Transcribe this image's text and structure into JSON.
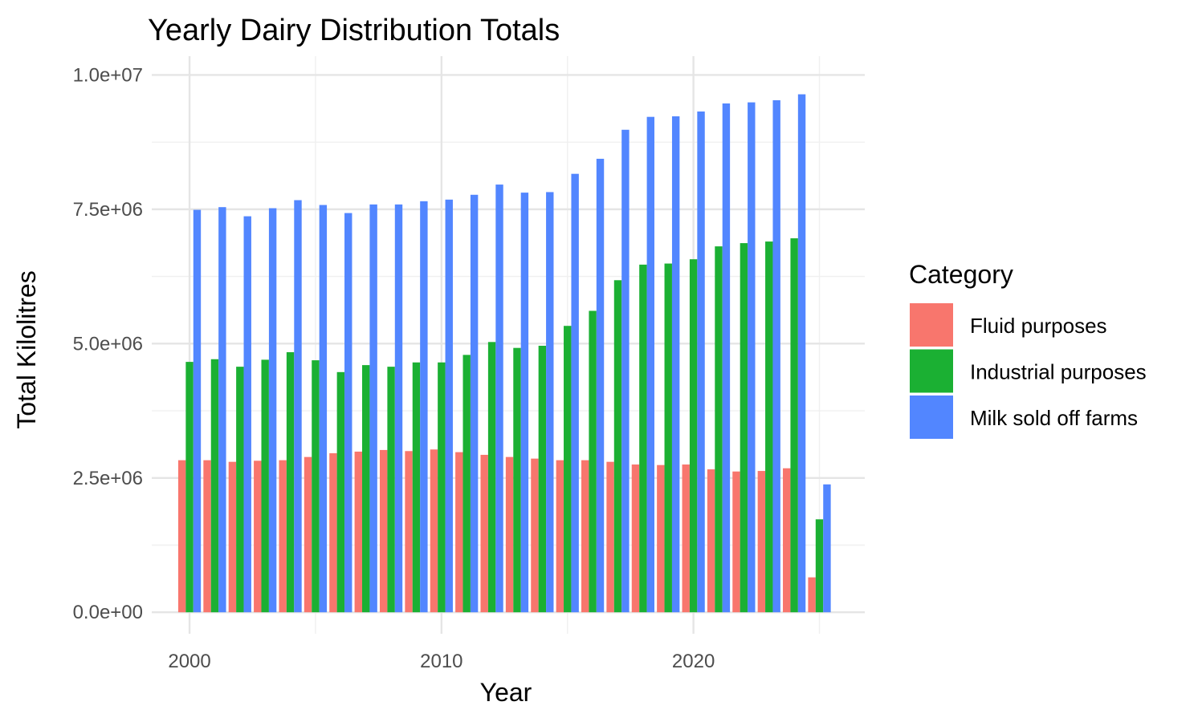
{
  "chart_data": {
    "type": "bar",
    "title": "Yearly Dairy Distribution Totals",
    "xlabel": "Year",
    "ylabel": "Total Kilolitres",
    "x": [
      2000,
      2001,
      2002,
      2003,
      2004,
      2005,
      2006,
      2007,
      2008,
      2009,
      2010,
      2011,
      2012,
      2013,
      2014,
      2015,
      2016,
      2017,
      2018,
      2019,
      2020,
      2021,
      2022,
      2023,
      2024,
      2025
    ],
    "xlim": [
      1998.5,
      2026.8
    ],
    "ylim": [
      -400000,
      10350000
    ],
    "x_ticks": [
      2000,
      2010,
      2020
    ],
    "x_tick_labels": [
      "2000",
      "2010",
      "2020"
    ],
    "y_ticks": [
      0,
      2500000,
      5000000,
      7500000,
      10000000
    ],
    "y_tick_labels": [
      "0.0e+00",
      "2.5e+06",
      "5.0e+06",
      "7.5e+06",
      "1.0e+07"
    ],
    "grid": true,
    "legend": {
      "title": "Category",
      "position": "right"
    },
    "series": [
      {
        "name": "Fluid purposes",
        "color": "#f8766d",
        "values": [
          2830000,
          2830000,
          2800000,
          2820000,
          2830000,
          2890000,
          2960000,
          2990000,
          3020000,
          3000000,
          3030000,
          2980000,
          2930000,
          2890000,
          2860000,
          2830000,
          2830000,
          2800000,
          2750000,
          2740000,
          2750000,
          2660000,
          2620000,
          2630000,
          2680000,
          650000
        ]
      },
      {
        "name": "Industrial purposes",
        "color": "#1bb033",
        "values": [
          4660000,
          4710000,
          4570000,
          4700000,
          4840000,
          4690000,
          4470000,
          4600000,
          4570000,
          4650000,
          4650000,
          4790000,
          5030000,
          4920000,
          4960000,
          5330000,
          5610000,
          6180000,
          6470000,
          6490000,
          6570000,
          6810000,
          6870000,
          6900000,
          6960000,
          1730000
        ]
      },
      {
        "name": "Milk sold off farms",
        "color": "#5286ff",
        "values": [
          7490000,
          7540000,
          7370000,
          7520000,
          7670000,
          7580000,
          7430000,
          7590000,
          7590000,
          7650000,
          7680000,
          7770000,
          7960000,
          7810000,
          7820000,
          8160000,
          8440000,
          8980000,
          9220000,
          9230000,
          9320000,
          9470000,
          9490000,
          9530000,
          9640000,
          2380000
        ]
      }
    ]
  }
}
